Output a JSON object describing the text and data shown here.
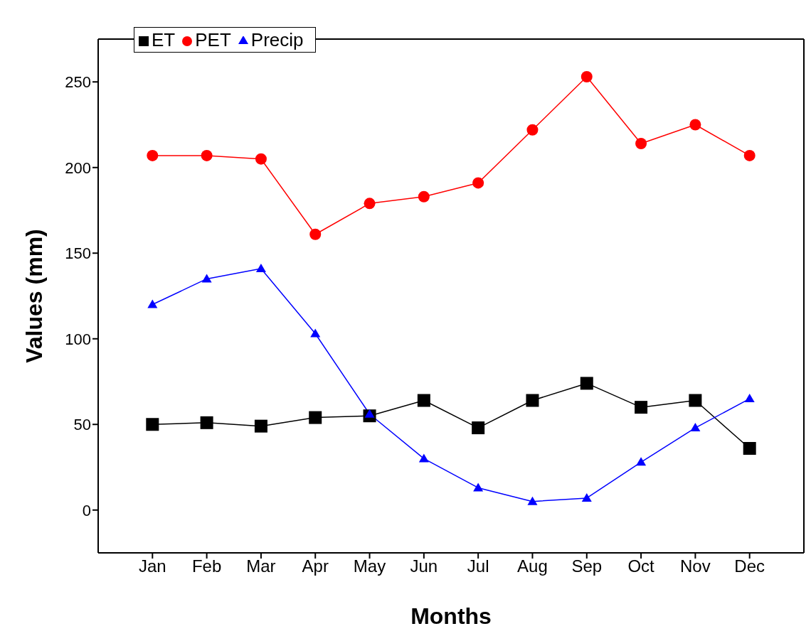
{
  "chart_data": {
    "type": "line",
    "xlabel": "Months",
    "ylabel": "Values (mm)",
    "categories": [
      "Jan",
      "Feb",
      "Mar",
      "Apr",
      "May",
      "Jun",
      "Jul",
      "Aug",
      "Sep",
      "Oct",
      "Nov",
      "Dec"
    ],
    "series": [
      {
        "name": "ET",
        "color": "#000000",
        "marker": "square",
        "values": [
          50,
          51,
          49,
          54,
          55,
          64,
          48,
          64,
          74,
          60,
          64,
          36
        ]
      },
      {
        "name": "PET",
        "color": "#ff0000",
        "marker": "circle",
        "values": [
          207,
          207,
          205,
          161,
          179,
          183,
          191,
          222,
          253,
          214,
          225,
          207
        ]
      },
      {
        "name": "Precip",
        "color": "#0000ff",
        "marker": "triangle",
        "values": [
          120,
          135,
          141,
          103,
          56,
          30,
          13,
          5,
          7,
          28,
          48,
          65
        ]
      }
    ],
    "ylim": [
      -25,
      275
    ],
    "yticks": [
      0,
      50,
      100,
      150,
      200,
      250
    ],
    "grid": false,
    "legend": "top left",
    "line_style": "solid"
  }
}
